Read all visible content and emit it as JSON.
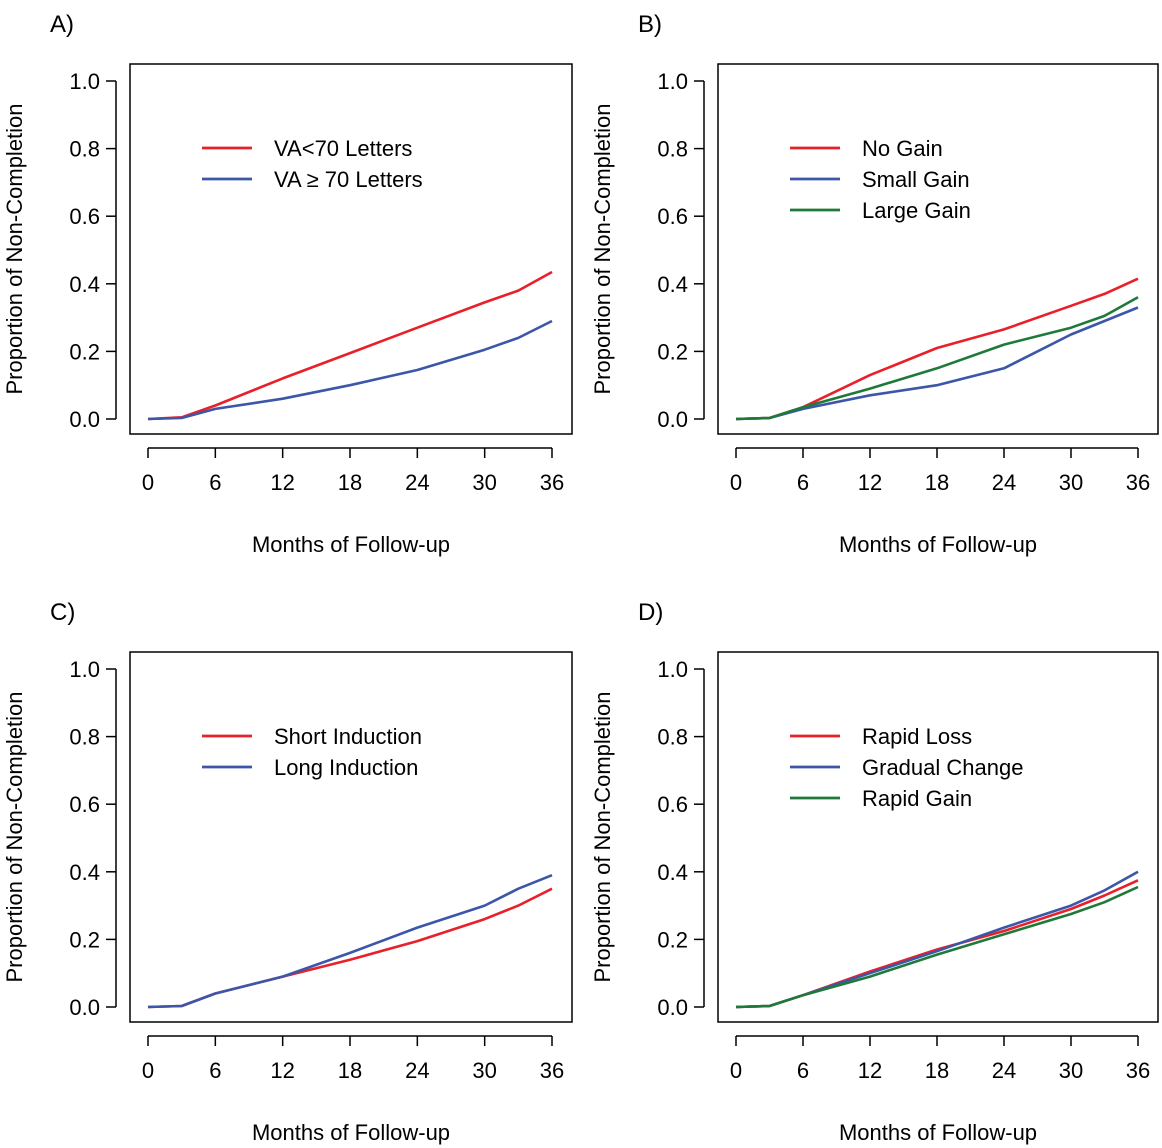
{
  "colors": {
    "red": "#e8202a",
    "blue": "#3c56a8",
    "green": "#1f7a3a"
  },
  "chart_data": [
    {
      "type": "line",
      "panel_label": "A)",
      "xlabel": "Months of Follow-up",
      "ylabel": "Proportion of Non-Completion",
      "xlim": [
        0,
        36
      ],
      "ylim": [
        0,
        1
      ],
      "xticks": [
        "0",
        "6",
        "12",
        "18",
        "24",
        "30",
        "36"
      ],
      "yticks": [
        "0.0",
        "0.2",
        "0.4",
        "0.6",
        "0.8",
        "1.0"
      ],
      "grid": false,
      "legend": "upper-left",
      "series": [
        {
          "name": "VA<70 Letters",
          "color": "red",
          "x": [
            0,
            3,
            6,
            12,
            18,
            24,
            30,
            33,
            36
          ],
          "y": [
            0,
            0.005,
            0.04,
            0.12,
            0.195,
            0.27,
            0.345,
            0.38,
            0.435
          ]
        },
        {
          "name": "VA ≥ 70 Letters",
          "color": "blue",
          "x": [
            0,
            3,
            6,
            12,
            18,
            24,
            30,
            33,
            36
          ],
          "y": [
            0,
            0.003,
            0.03,
            0.06,
            0.1,
            0.145,
            0.205,
            0.24,
            0.29
          ]
        }
      ]
    },
    {
      "type": "line",
      "panel_label": "B)",
      "xlabel": "Months of Follow-up",
      "ylabel": "Proportion of Non-Completion",
      "xlim": [
        0,
        36
      ],
      "ylim": [
        0,
        1
      ],
      "xticks": [
        "0",
        "6",
        "12",
        "18",
        "24",
        "30",
        "36"
      ],
      "yticks": [
        "0.0",
        "0.2",
        "0.4",
        "0.6",
        "0.8",
        "1.0"
      ],
      "grid": false,
      "legend": "upper-left",
      "series": [
        {
          "name": "No Gain",
          "color": "red",
          "x": [
            0,
            3,
            6,
            12,
            18,
            24,
            30,
            33,
            36
          ],
          "y": [
            0,
            0.003,
            0.035,
            0.13,
            0.21,
            0.265,
            0.335,
            0.37,
            0.415
          ]
        },
        {
          "name": "Small Gain",
          "color": "blue",
          "x": [
            0,
            3,
            6,
            12,
            18,
            24,
            30,
            33,
            36
          ],
          "y": [
            0,
            0.003,
            0.03,
            0.07,
            0.1,
            0.15,
            0.25,
            0.29,
            0.33
          ]
        },
        {
          "name": "Large Gain",
          "color": "green",
          "x": [
            0,
            3,
            6,
            12,
            18,
            24,
            30,
            33,
            36
          ],
          "y": [
            0,
            0.003,
            0.035,
            0.09,
            0.15,
            0.22,
            0.27,
            0.305,
            0.36
          ]
        }
      ]
    },
    {
      "type": "line",
      "panel_label": "C)",
      "xlabel": "Months of Follow-up",
      "ylabel": "Proportion of Non-Completion",
      "xlim": [
        0,
        36
      ],
      "ylim": [
        0,
        1
      ],
      "xticks": [
        "0",
        "6",
        "12",
        "18",
        "24",
        "30",
        "36"
      ],
      "yticks": [
        "0.0",
        "0.2",
        "0.4",
        "0.6",
        "0.8",
        "1.0"
      ],
      "grid": false,
      "legend": "upper-left",
      "series": [
        {
          "name": "Short Induction",
          "color": "red",
          "x": [
            0,
            3,
            6,
            12,
            18,
            24,
            30,
            33,
            36
          ],
          "y": [
            0,
            0.003,
            0.04,
            0.09,
            0.14,
            0.195,
            0.26,
            0.3,
            0.35
          ]
        },
        {
          "name": "Long Induction",
          "color": "blue",
          "x": [
            0,
            3,
            6,
            12,
            18,
            24,
            30,
            33,
            36
          ],
          "y": [
            0,
            0.003,
            0.04,
            0.09,
            0.16,
            0.235,
            0.3,
            0.35,
            0.39
          ]
        }
      ]
    },
    {
      "type": "line",
      "panel_label": "D)",
      "xlabel": "Months of Follow-up",
      "ylabel": "Proportion of Non-Completion",
      "xlim": [
        0,
        36
      ],
      "ylim": [
        0,
        1
      ],
      "xticks": [
        "0",
        "6",
        "12",
        "18",
        "24",
        "30",
        "36"
      ],
      "yticks": [
        "0.0",
        "0.2",
        "0.4",
        "0.6",
        "0.8",
        "1.0"
      ],
      "grid": false,
      "legend": "upper-left",
      "series": [
        {
          "name": "Rapid Loss",
          "color": "red",
          "x": [
            0,
            3,
            6,
            12,
            18,
            24,
            30,
            33,
            36
          ],
          "y": [
            0,
            0.003,
            0.035,
            0.105,
            0.17,
            0.225,
            0.29,
            0.33,
            0.375
          ]
        },
        {
          "name": "Gradual Change",
          "color": "blue",
          "x": [
            0,
            3,
            6,
            12,
            18,
            24,
            30,
            33,
            36
          ],
          "y": [
            0,
            0.003,
            0.035,
            0.1,
            0.165,
            0.235,
            0.3,
            0.345,
            0.4
          ]
        },
        {
          "name": "Rapid Gain",
          "color": "green",
          "x": [
            0,
            3,
            6,
            12,
            18,
            24,
            30,
            33,
            36
          ],
          "y": [
            0,
            0.003,
            0.035,
            0.09,
            0.155,
            0.215,
            0.275,
            0.31,
            0.355
          ]
        }
      ]
    }
  ]
}
